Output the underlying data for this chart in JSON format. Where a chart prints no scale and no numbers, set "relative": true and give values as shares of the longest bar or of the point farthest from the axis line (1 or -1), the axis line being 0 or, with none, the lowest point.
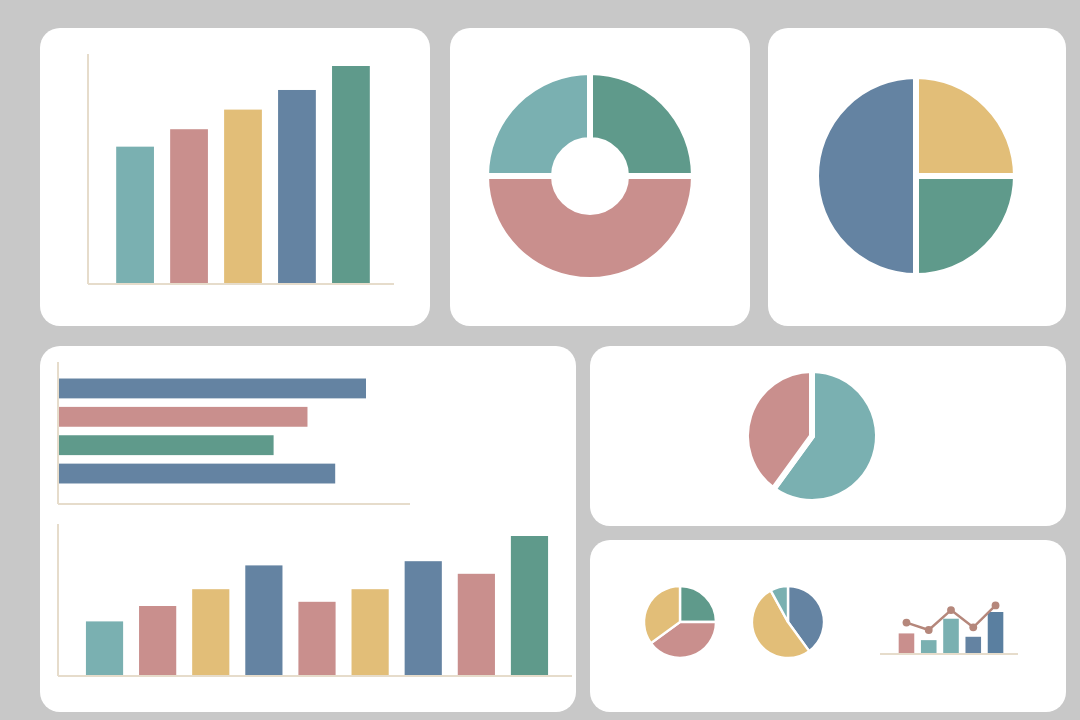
{
  "chart_data": [
    {
      "type": "bar",
      "relative": true,
      "categories": [
        null,
        null,
        null,
        null,
        null
      ],
      "values": [
        0.63,
        0.71,
        0.8,
        0.89,
        1
      ],
      "colors": [
        "#7ab0b1",
        "#c98f8d",
        "#e2be78",
        "#6483a2",
        "#5f9a8b"
      ]
    },
    {
      "type": "donut",
      "categories": [
        null,
        null,
        null
      ],
      "values": [
        25,
        50,
        25
      ],
      "colors": [
        "#5f9a8b",
        "#c98f8d",
        "#7ab0b1"
      ]
    },
    {
      "type": "pie",
      "categories": [
        null,
        null,
        null
      ],
      "values": [
        25,
        25,
        50
      ],
      "colors": [
        "#e2be78",
        "#5f9a8b",
        "#6483a2"
      ]
    },
    {
      "type": "bar",
      "orientation": "horizontal",
      "relative": true,
      "categories": [
        null,
        null,
        null,
        null
      ],
      "values": [
        1,
        0.81,
        0.7,
        0.9
      ],
      "colors": [
        "#6483a2",
        "#c98f8d",
        "#5f9a8b",
        "#6483a2"
      ]
    },
    {
      "type": "bar",
      "relative": true,
      "categories": [
        null,
        null,
        null,
        null,
        null,
        null,
        null,
        null,
        null
      ],
      "values": [
        0.39,
        0.5,
        0.62,
        0.79,
        0.53,
        0.62,
        0.82,
        0.73,
        1
      ],
      "colors": [
        "#7ab0b1",
        "#c98f8d",
        "#e2be78",
        "#6483a2",
        "#c98f8d",
        "#e2be78",
        "#6483a2",
        "#c98f8d",
        "#5f9a8b"
      ]
    },
    {
      "type": "pie",
      "categories": [
        null,
        null
      ],
      "values": [
        60,
        40
      ],
      "colors": [
        "#7ab0b1",
        "#c98f8d"
      ]
    },
    {
      "type": "pie",
      "categories": [
        null,
        null,
        null
      ],
      "values": [
        25,
        40,
        35
      ],
      "colors": [
        "#5f9a8b",
        "#c98f8d",
        "#e2be78"
      ]
    },
    {
      "type": "pie",
      "categories": [
        null,
        null,
        null
      ],
      "values": [
        40,
        52,
        8
      ],
      "colors": [
        "#6483a2",
        "#e2be78",
        "#7ab0b1"
      ]
    },
    {
      "type": "bar",
      "relative": true,
      "categories": [
        null,
        null,
        null,
        null,
        null
      ],
      "values": [
        0.49,
        0.33,
        0.84,
        0.41,
        1
      ],
      "colors": [
        "#c98f8d",
        "#7ab0b1",
        "#7ab0b1",
        "#6483a2",
        "#5a7fa0"
      ]
    },
    {
      "type": "line",
      "relative": true,
      "marker": "circle",
      "categories": [
        null,
        null,
        null,
        null,
        null
      ],
      "series": [
        {
          "color": "#b5877b",
          "values": [
            0.3,
            0,
            0.81,
            0.11,
            1
          ]
        }
      ]
    }
  ]
}
